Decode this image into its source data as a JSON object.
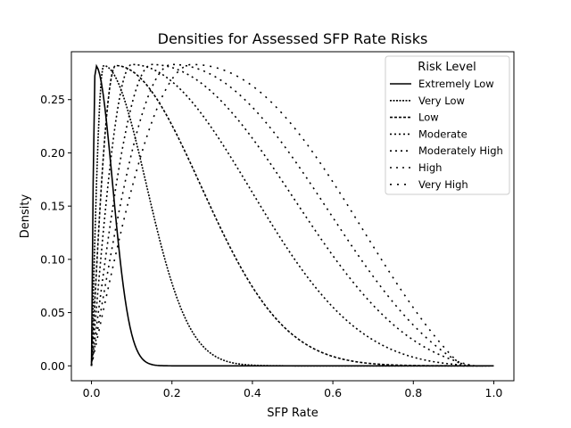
{
  "chart_data": {
    "type": "line",
    "title": "Densities for Assessed SFP Rate Risks",
    "xlabel": "SFP Rate",
    "ylabel": "Density",
    "xlim": [
      -0.05,
      1.05
    ],
    "ylim": [
      -0.014,
      0.295
    ],
    "xticks": [
      0.0,
      0.2,
      0.4,
      0.6,
      0.8,
      1.0
    ],
    "xtick_labels": [
      "0.0",
      "0.2",
      "0.4",
      "0.6",
      "0.8",
      "1.0"
    ],
    "yticks": [
      0.0,
      0.05,
      0.1,
      0.15,
      0.2,
      0.25
    ],
    "ytick_labels": [
      "0.00",
      "0.05",
      "0.10",
      "0.15",
      "0.20",
      "0.25"
    ],
    "grid": false,
    "legend": {
      "title": "Risk Level",
      "placement": "upper right"
    },
    "series_color": "#000000",
    "series": [
      {
        "name": "Extremely Low",
        "dash": "solid",
        "peak_x": 0.01,
        "peak_y": 0.282,
        "tail_scale": 0.06,
        "end_x": 1.0
      },
      {
        "name": "Very Low",
        "dash": "2,1.5",
        "peak_x": 0.03,
        "peak_y": 0.282,
        "tail_scale": 0.15,
        "end_x": 0.99
      },
      {
        "name": "Low",
        "dash": "3,2",
        "peak_x": 0.06,
        "peak_y": 0.282,
        "tail_scale": 0.3,
        "end_x": 0.98
      },
      {
        "name": "Moderate",
        "dash": "2,3",
        "peak_x": 0.1,
        "peak_y": 0.283,
        "tail_scale": 0.42,
        "end_x": 0.96
      },
      {
        "name": "Moderately High",
        "dash": "2,4",
        "peak_x": 0.15,
        "peak_y": 0.283,
        "tail_scale": 0.5,
        "end_x": 0.95
      },
      {
        "name": "High",
        "dash": "2,5",
        "peak_x": 0.2,
        "peak_y": 0.283,
        "tail_scale": 0.55,
        "end_x": 0.93
      },
      {
        "name": "Very High",
        "dash": "2,6",
        "peak_x": 0.25,
        "peak_y": 0.283,
        "tail_scale": 0.6,
        "end_x": 0.92
      }
    ]
  }
}
